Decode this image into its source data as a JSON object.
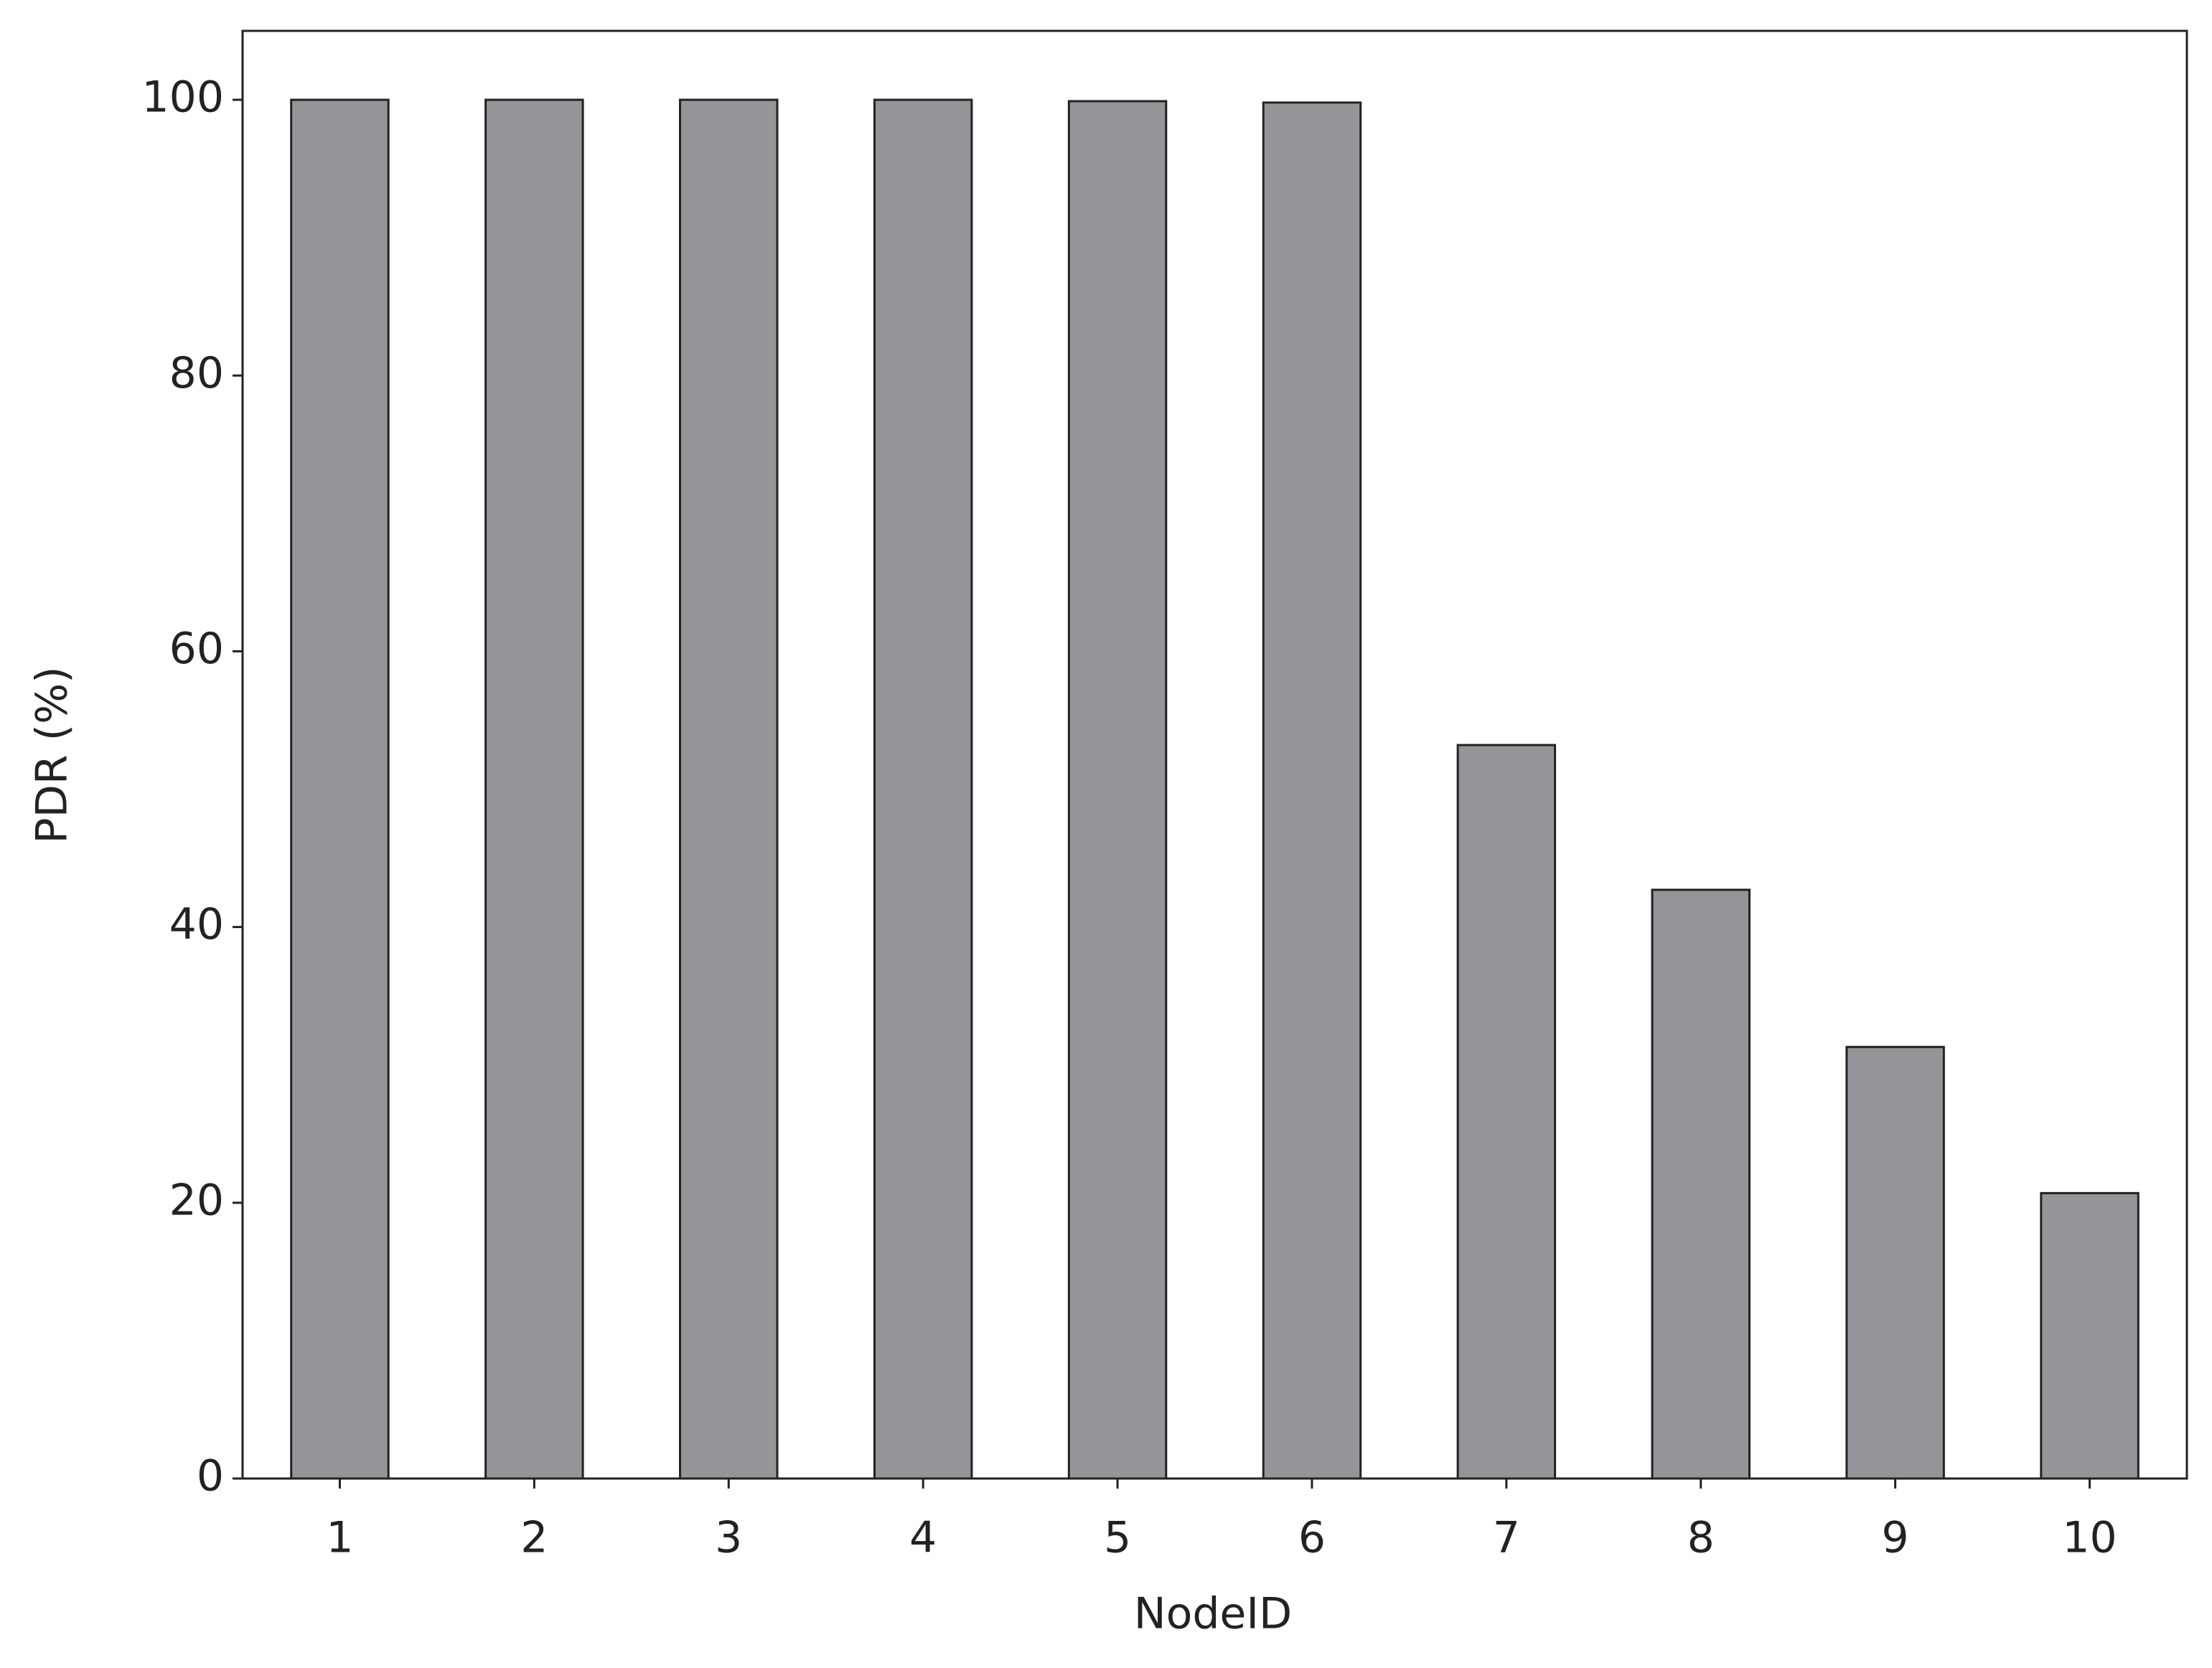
{
  "chart_data": {
    "type": "bar",
    "x_label": "NodeID",
    "y_label": "PDR (%)",
    "categories": [
      "1",
      "2",
      "3",
      "4",
      "5",
      "6",
      "7",
      "8",
      "9",
      "10"
    ],
    "values": [
      100,
      100,
      100,
      100,
      99.9,
      99.8,
      53.2,
      42.7,
      31.3,
      20.7
    ],
    "color": "#939598",
    "ylim": [
      0,
      105
    ],
    "yticks": [
      0,
      20,
      40,
      60,
      80,
      100
    ],
    "grid": false
  }
}
